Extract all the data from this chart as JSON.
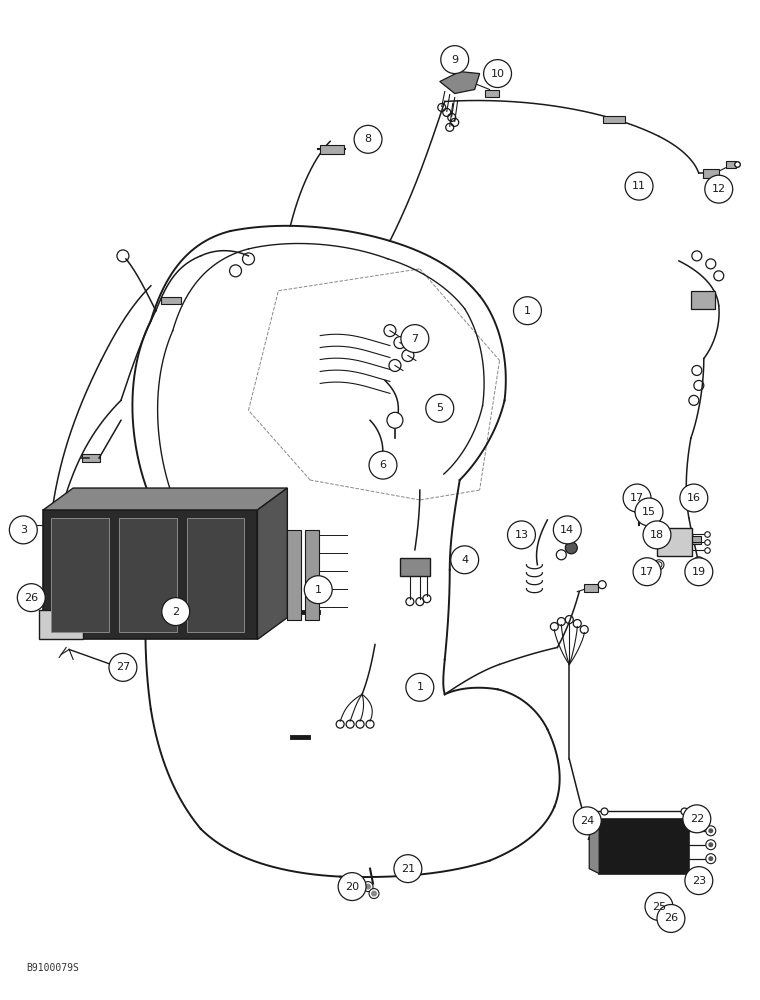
{
  "bg_color": "#ffffff",
  "line_color": "#1a1a1a",
  "fig_width": 7.6,
  "fig_height": 10.0,
  "watermark": "B9100079S"
}
